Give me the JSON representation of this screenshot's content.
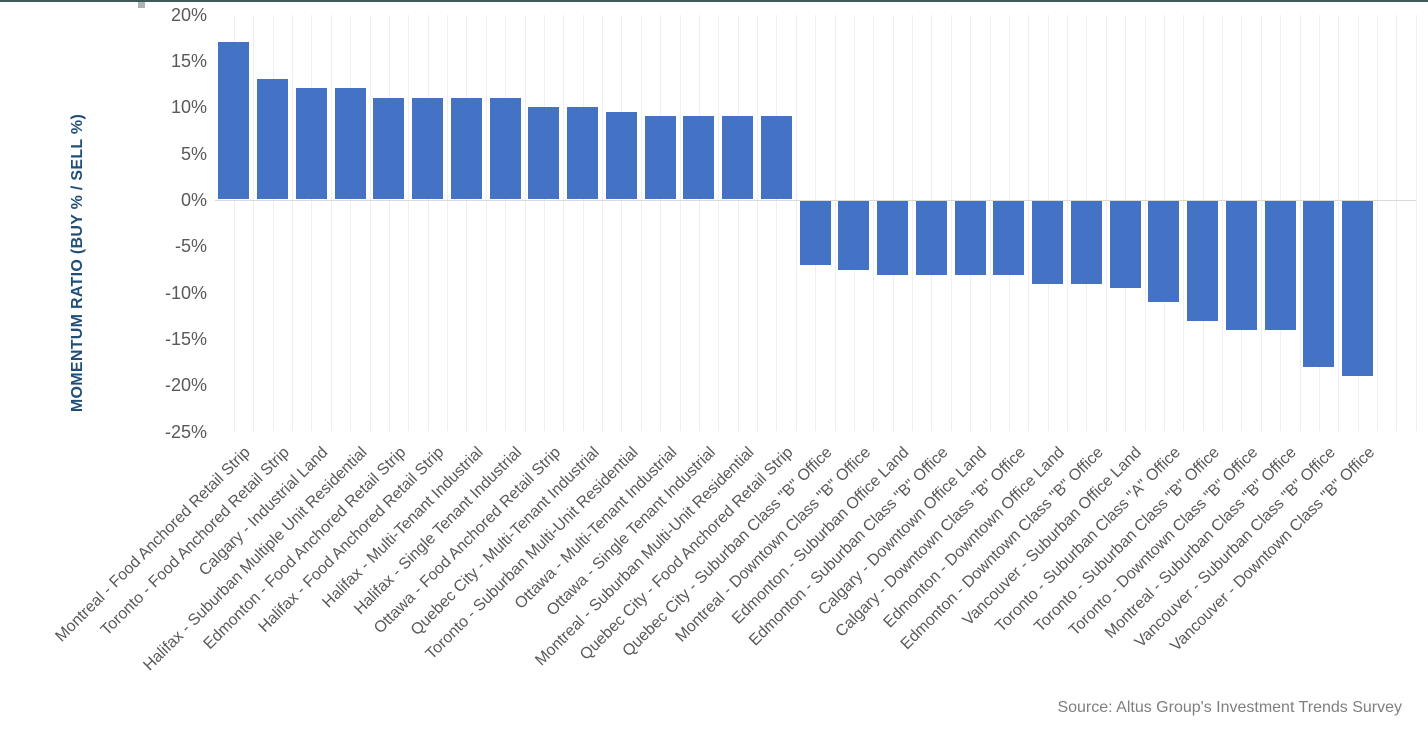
{
  "colors": {
    "bar_fill": "#4472C4",
    "gridline": "#EFEFEF",
    "zero_line": "#D9D9D9",
    "tick_label": "#595959",
    "axis_title": "#1F4E79",
    "source_text": "#7F7F7F",
    "top_border": "#3F5956"
  },
  "chart_data": {
    "type": "bar",
    "title": "",
    "xlabel": "",
    "ylabel": "MOMENTUM RATIO (BUY % / SELL %)",
    "ylim": [
      -25,
      20
    ],
    "yticks": [
      20,
      15,
      10,
      5,
      0,
      -5,
      -10,
      -15,
      -20,
      -25
    ],
    "ytick_suffix": "%",
    "grid": "vertical-only",
    "legend": "none",
    "bar_color": "#4472C4",
    "source_note": "Source: Altus Group's Investment Trends Survey",
    "categories": [
      "Montreal - Food Anchored Retail Strip",
      "Toronto - Food Anchored Retail Strip",
      "Calgary - Industrial Land",
      "Halifax - Suburban Multiple Unit Residential",
      "Edmonton - Food Anchored Retail Strip",
      "Halifax - Food Anchored Retail Strip",
      "Halifax - Multi-Tenant Industrial",
      "Halifax - Single Tenant Industrial",
      "Ottawa - Food Anchored Retail Strip",
      "Quebec City - Multi-Tenant Industrial",
      "Toronto - Suburban Multi-Unit Residential",
      "Ottawa - Multi-Tenant Industrial",
      "Ottawa - Single Tenant Industrial",
      "Montreal - Suburban Multi-Unit Residential",
      "Quebec City - Food Anchored Retail Strip",
      "Quebec City - Suburban Class \"B\" Office",
      "Montreal - Downtown Class \"B\" Office",
      "Edmonton - Suburban Office Land",
      "Edmonton - Suburban Class \"B\" Office",
      "Calgary - Downtown Office Land",
      "Calgary - Downtown Class \"B\" Office",
      "Edmonton - Downtown Office Land",
      "Edmonton - Downtown Class \"B\" Office",
      "Vancouver - Suburban Office Land",
      "Toronto - Suburban Class \"A\" Office",
      "Toronto - Suburban Class \"B\" Office",
      "Toronto - Downtown Class \"B\" Office",
      "Montreal - Suburban Class \"B\" Office",
      "Vancouver - Suburban Class \"B\" Office",
      "Vancouver - Downtown Class \"B\" Office"
    ],
    "values": [
      17,
      13,
      12,
      12,
      11,
      11,
      11,
      11,
      10,
      10,
      9.5,
      9,
      9,
      9,
      9,
      -7,
      -7.5,
      -8,
      -8,
      -8,
      -8,
      -9,
      -9,
      -9.5,
      -11,
      -13,
      -14,
      -14,
      -18,
      -19
    ]
  }
}
